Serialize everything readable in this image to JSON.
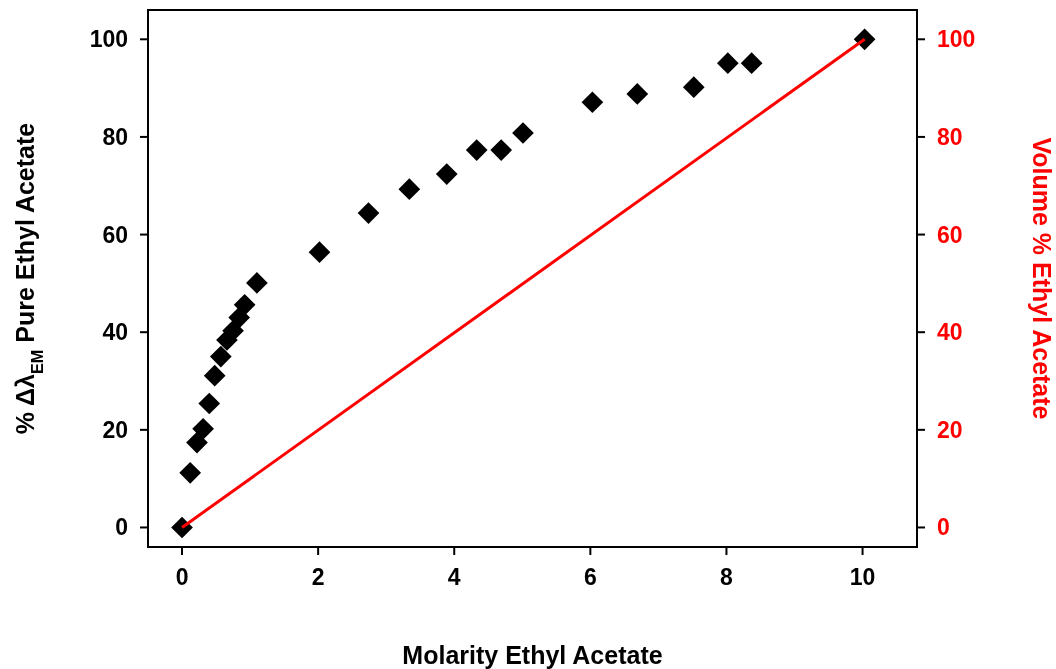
{
  "chart_data": {
    "type": "scatter",
    "xlabel": "Molarity Ethyl Acetate",
    "ylabel": "% Δλ$_{EM}$ Pure Ethyl Acetate",
    "y2label": "Volume % Ethyl Acetate",
    "x": [
      0,
      0.12,
      0.22,
      0.31,
      0.4,
      0.48,
      0.57,
      0.66,
      0.75,
      0.84,
      0.92,
      1.1,
      2.02,
      2.74,
      3.34,
      3.89,
      4.33,
      4.69,
      5.01,
      6.03,
      6.69,
      7.52,
      8.02,
      8.37,
      10.03
    ],
    "series": [
      {
        "color": "#000000",
        "marker": "diamond",
        "values": [
          0,
          11.2,
          17.4,
          20.2,
          25.4,
          31.1,
          35,
          38.4,
          40.3,
          43,
          45.6,
          50.1,
          56.4,
          64.4,
          69.3,
          72.4,
          77.3,
          77.3,
          80.8,
          87.1,
          88.8,
          90.2,
          95.1,
          95.1,
          100
        ]
      },
      {
        "type": "line",
        "axis": "y2",
        "color": "#ff0000",
        "x": [
          0,
          10.03
        ],
        "values": [
          0,
          100
        ]
      }
    ],
    "xlim": [
      -0.5,
      10.8
    ],
    "xticks": [
      0,
      2,
      4,
      6,
      8,
      10
    ],
    "ylim": [
      -4,
      106
    ],
    "yticks": [
      0,
      20,
      40,
      60,
      80,
      100
    ],
    "y2lim": [
      -4,
      106
    ],
    "y2ticks": [
      0,
      20,
      40,
      60,
      80,
      100
    ],
    "grid": false
  }
}
